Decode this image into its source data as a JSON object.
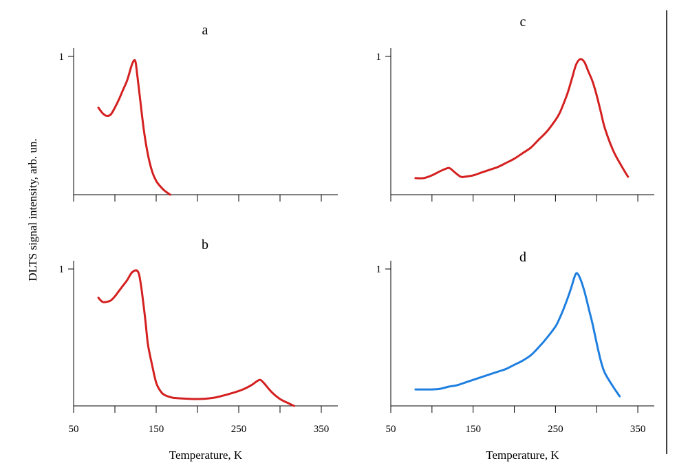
{
  "chart_data": [
    {
      "type": "line",
      "panel": "a",
      "title": "a",
      "xlim": [
        50,
        370
      ],
      "ylim": [
        0,
        1
      ],
      "y_ticks": [
        "1"
      ],
      "x_ticks": [],
      "colors": {
        "series": "#d42020"
      },
      "series": [
        {
          "x": [
            80,
            85,
            90,
            95,
            100,
            105,
            110,
            115,
            120,
            123,
            125,
            127,
            130,
            135,
            140,
            145,
            150,
            155,
            160,
            167
          ],
          "y": [
            0.63,
            0.59,
            0.57,
            0.58,
            0.63,
            0.69,
            0.76,
            0.83,
            0.93,
            0.97,
            0.96,
            0.87,
            0.72,
            0.47,
            0.29,
            0.17,
            0.1,
            0.06,
            0.03,
            0.0
          ]
        }
      ]
    },
    {
      "type": "line",
      "panel": "b",
      "title": "b",
      "xlim": [
        50,
        370
      ],
      "ylim": [
        0,
        1
      ],
      "y_ticks": [
        "1"
      ],
      "x_ticks": [
        "50",
        "150",
        "250",
        "350"
      ],
      "xlabel": "Temperature, K",
      "colors": {
        "series": "#d42020"
      },
      "series": [
        {
          "x": [
            80,
            85,
            90,
            95,
            100,
            105,
            110,
            115,
            120,
            125,
            128,
            130,
            133,
            137,
            140,
            145,
            150,
            155,
            160,
            170,
            180,
            200,
            220,
            240,
            255,
            265,
            272,
            276,
            280,
            290,
            300,
            310,
            317
          ],
          "y": [
            0.79,
            0.76,
            0.76,
            0.77,
            0.8,
            0.84,
            0.88,
            0.92,
            0.97,
            0.99,
            0.98,
            0.94,
            0.82,
            0.62,
            0.45,
            0.3,
            0.17,
            0.11,
            0.08,
            0.06,
            0.055,
            0.05,
            0.06,
            0.09,
            0.12,
            0.15,
            0.18,
            0.19,
            0.17,
            0.1,
            0.05,
            0.02,
            0.0
          ]
        }
      ]
    },
    {
      "type": "line",
      "panel": "c",
      "title": "c",
      "xlim": [
        50,
        370
      ],
      "ylim": [
        0,
        1
      ],
      "y_ticks": [
        "1"
      ],
      "x_ticks": [],
      "colors": {
        "series": "#d42020"
      },
      "series": [
        {
          "x": [
            80,
            90,
            100,
            110,
            118,
            122,
            128,
            135,
            140,
            150,
            160,
            170,
            180,
            190,
            200,
            210,
            220,
            230,
            240,
            250,
            255,
            260,
            265,
            270,
            275,
            280,
            285,
            290,
            295,
            300,
            305,
            310,
            320,
            330,
            338
          ],
          "y": [
            0.12,
            0.12,
            0.14,
            0.17,
            0.19,
            0.19,
            0.16,
            0.13,
            0.13,
            0.14,
            0.16,
            0.18,
            0.2,
            0.23,
            0.26,
            0.3,
            0.34,
            0.4,
            0.46,
            0.54,
            0.59,
            0.66,
            0.74,
            0.84,
            0.94,
            0.98,
            0.96,
            0.89,
            0.82,
            0.72,
            0.6,
            0.48,
            0.32,
            0.21,
            0.13
          ]
        }
      ]
    },
    {
      "type": "line",
      "panel": "d",
      "title": "d",
      "xlim": [
        50,
        370
      ],
      "ylim": [
        0,
        1
      ],
      "y_ticks": [
        "1"
      ],
      "x_ticks": [
        "50",
        "150",
        "250",
        "350"
      ],
      "xlabel": "Temperature, K",
      "colors": {
        "series": "#1e7fe0"
      },
      "series": [
        {
          "x": [
            80,
            90,
            100,
            110,
            120,
            130,
            140,
            150,
            160,
            170,
            180,
            190,
            200,
            210,
            220,
            230,
            240,
            250,
            255,
            260,
            265,
            270,
            273,
            276,
            280,
            285,
            290,
            295,
            300,
            305,
            310,
            320,
            328
          ],
          "y": [
            0.12,
            0.12,
            0.12,
            0.125,
            0.14,
            0.15,
            0.17,
            0.19,
            0.21,
            0.23,
            0.25,
            0.27,
            0.3,
            0.33,
            0.37,
            0.43,
            0.5,
            0.58,
            0.64,
            0.71,
            0.79,
            0.88,
            0.94,
            0.97,
            0.93,
            0.84,
            0.72,
            0.6,
            0.46,
            0.33,
            0.24,
            0.14,
            0.07
          ]
        }
      ]
    }
  ],
  "figure": {
    "ylabel": "DLTS signal intensity, arb. un."
  }
}
